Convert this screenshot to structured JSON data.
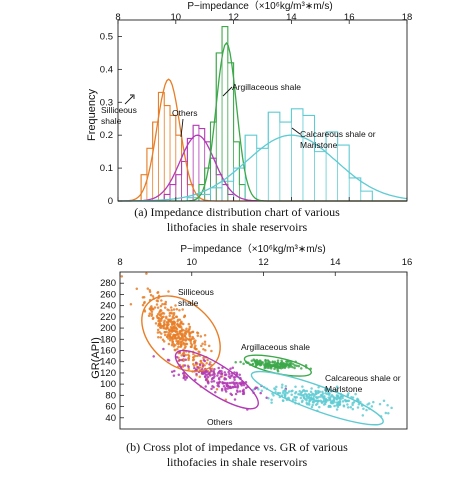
{
  "chart_data": [
    {
      "type": "histogram",
      "x_axis_title": "P−impedance（×10⁶kg/m³∗m/s)",
      "ylabel": "Frequency",
      "xlim": [
        8,
        18
      ],
      "ylim": [
        0,
        0.55
      ],
      "xticks": [
        "8",
        "10",
        "12",
        "14",
        "16",
        "18"
      ],
      "yticks": [
        "0",
        "0.1",
        "0.2",
        "0.3",
        "0.4",
        "0.5"
      ],
      "caption_line1": "(a) Impedance distribution chart of various",
      "caption_line2": "lithofacies in shale reservoirs",
      "series": [
        {
          "id": "siliceous",
          "label_line1": "Silliceous",
          "label_line2": "shale",
          "color": "#E87E27",
          "bin_width": 0.2,
          "bins_x": [
            8.8,
            9.0,
            9.2,
            9.4,
            9.6,
            9.8,
            10.0,
            10.2,
            10.4,
            10.6
          ],
          "bins_y": [
            0.08,
            0.16,
            0.24,
            0.33,
            0.29,
            0.26,
            0.2,
            0.12,
            0.05,
            0.02
          ],
          "mean": 9.75,
          "sd": 0.4,
          "peak": 0.37
        },
        {
          "id": "others",
          "label_line1": "Others",
          "color": "#B23AB5",
          "bin_width": 0.2,
          "bins_x": [
            9.6,
            9.8,
            10.0,
            10.2,
            10.4,
            10.6,
            10.8,
            11.0,
            11.2,
            11.4,
            11.6,
            11.8
          ],
          "bins_y": [
            0.02,
            0.05,
            0.08,
            0.12,
            0.19,
            0.23,
            0.22,
            0.18,
            0.13,
            0.08,
            0.05,
            0.02
          ],
          "mean": 10.75,
          "sd": 0.6,
          "peak": 0.2
        },
        {
          "id": "argillaceous",
          "label_line1": "Argillaceous shale",
          "color": "#3CA84A",
          "bin_width": 0.2,
          "bins_x": [
            10.8,
            11.0,
            11.2,
            11.4,
            11.6,
            11.8,
            12.0,
            12.2
          ],
          "bins_y": [
            0.05,
            0.1,
            0.24,
            0.45,
            0.53,
            0.42,
            0.18,
            0.05
          ],
          "mean": 11.75,
          "sd": 0.35,
          "peak": 0.48
        },
        {
          "id": "calcareous",
          "label_line1": "Calcareous shale or",
          "label_line2": "Maristone",
          "color": "#5ECBD2",
          "bin_width": 0.4,
          "bins_x": [
            10.4,
            10.8,
            11.2,
            11.6,
            12.0,
            12.4,
            12.8,
            13.2,
            13.6,
            14.0,
            14.4,
            14.8,
            15.2,
            15.6,
            16.0,
            16.4
          ],
          "bins_y": [
            0.01,
            0.02,
            0.04,
            0.06,
            0.1,
            0.2,
            0.16,
            0.27,
            0.24,
            0.28,
            0.26,
            0.15,
            0.21,
            0.17,
            0.07,
            0.03
          ],
          "mean": 14.0,
          "sd": 1.55,
          "peak": 0.2
        }
      ]
    },
    {
      "type": "scatter",
      "x_axis_title": "P−impedance（×10⁶kg/m³∗m/s)",
      "ylabel": "GR(API)",
      "xlim": [
        8,
        16
      ],
      "ylim": [
        20,
        300
      ],
      "xticks": [
        "8",
        "10",
        "12",
        "14",
        "16"
      ],
      "yticks": [
        "40",
        "60",
        "80",
        "100",
        "120",
        "140",
        "160",
        "180",
        "200",
        "220",
        "240",
        "260",
        "280"
      ],
      "caption_line1": "(b) Cross plot of impedance vs. GR of various",
      "caption_line2": "lithofacies in shale reservoirs",
      "groups": [
        {
          "id": "siliceous",
          "label_line1": "Silliceous",
          "label_line2": "shale",
          "color": "#E87E27",
          "n": 420,
          "center": [
            9.6,
            190
          ],
          "spread": [
            0.45,
            45
          ],
          "ellipse": {
            "cx": 9.7,
            "cy": 190,
            "rx": 1.25,
            "ry": 55,
            "angle": 42
          }
        },
        {
          "id": "others",
          "label_line1": "Others",
          "color": "#B23AB5",
          "n": 200,
          "center": [
            10.8,
            110
          ],
          "spread": [
            0.6,
            25
          ],
          "ellipse": {
            "cx": 10.7,
            "cy": 108,
            "rx": 1.35,
            "ry": 26,
            "angle": 33
          }
        },
        {
          "id": "argillaceous",
          "label_line1": "Argillaceous shale",
          "color": "#3CA84A",
          "n": 170,
          "center": [
            12.3,
            135
          ],
          "spread": [
            0.4,
            8
          ],
          "ellipse": {
            "cx": 12.4,
            "cy": 133,
            "rx": 0.95,
            "ry": 14,
            "angle": 12
          }
        },
        {
          "id": "calcareous",
          "label_line1": "Calcareous shale or",
          "label_line2": "Marlstone",
          "color": "#5ECBD2",
          "n": 260,
          "center": [
            13.6,
            75
          ],
          "spread": [
            0.8,
            20
          ],
          "ellipse": {
            "cx": 13.5,
            "cy": 75,
            "rx": 1.95,
            "ry": 22,
            "angle": 20
          }
        }
      ]
    }
  ]
}
